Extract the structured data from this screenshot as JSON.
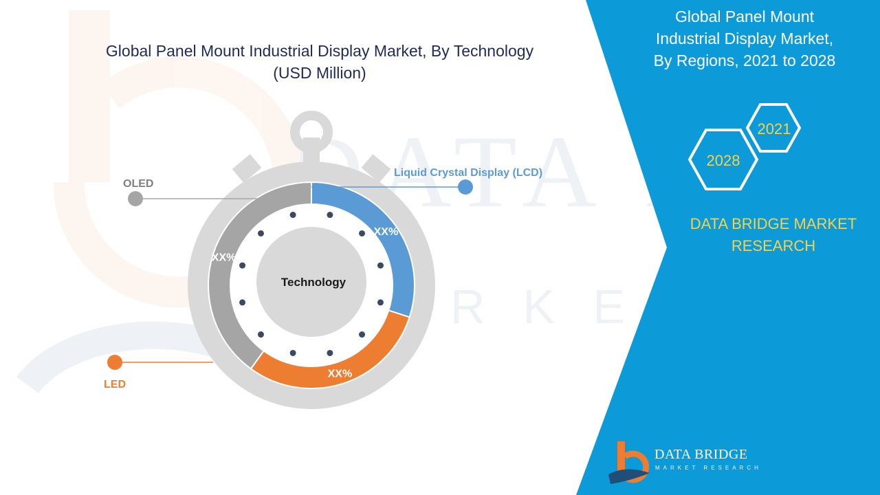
{
  "chart_data": {
    "type": "pie",
    "title": "Global Panel Mount Industrial Display Market, By Technology",
    "subtitle": "(USD Million)",
    "center_label": "Technology",
    "series": [
      {
        "name": "Liquid Crystal Display (LCD)",
        "label": "XX%",
        "value": 0.3,
        "color": "#5b9bd5"
      },
      {
        "name": "LED",
        "label": "XX%",
        "value": 0.3,
        "color": "#ed7d31"
      },
      {
        "name": "OLED",
        "label": "XX%",
        "value": 0.4,
        "color": "#a5a5a5"
      }
    ]
  },
  "side_panel": {
    "title_lines": [
      "Global Panel Mount",
      "Industrial Display Market,",
      "By Regions, 2021 to 2028"
    ],
    "years": [
      "2021",
      "2028"
    ],
    "brand_lines": [
      "DATA BRIDGE MARKET",
      "RESEARCH"
    ],
    "background_color": "#0c9ad8"
  },
  "logo": {
    "name": "DATA BRIDGE",
    "tagline": "MARKET RESEARCH"
  }
}
